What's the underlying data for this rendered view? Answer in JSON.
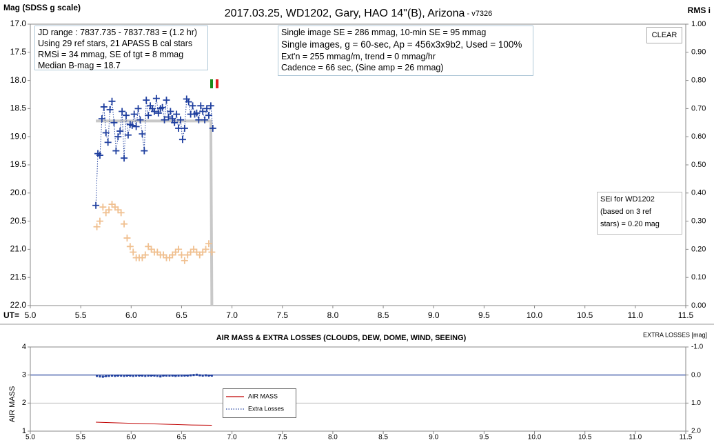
{
  "chart_data": [
    {
      "type": "scatter",
      "title": "2017.03.25, WD1202, Gary, HAO 14\"(B), Arizona",
      "subtitle": " - v7326",
      "y_label": "Mag (SDSS g scale)",
      "y2_label": "RMS i",
      "x_label": "UT=",
      "xlim": [
        5.0,
        11.5
      ],
      "xticks": [
        {
          "value": 5,
          "label": "5.0"
        },
        5.5,
        {
          "value": 6,
          "label": "6.0"
        },
        6.5,
        {
          "value": 7,
          "label": "7.0"
        },
        7.5,
        {
          "value": 8,
          "label": "8.0"
        },
        8.5,
        {
          "value": 9,
          "label": "9.0"
        },
        9.5,
        {
          "value": 10,
          "label": "10.0"
        },
        10.5,
        {
          "value": 11,
          "label": "11.0"
        },
        11.5
      ],
      "ylim": [
        22,
        17
      ],
      "yticks": [
        {
          "value": 17,
          "label": "17.0"
        },
        17.5,
        {
          "value": 18,
          "label": "18.0"
        },
        18.5,
        {
          "value": 19,
          "label": "19.0"
        },
        19.5,
        {
          "value": 20,
          "label": "20.0"
        },
        20.5,
        {
          "value": 21,
          "label": "21.0"
        },
        21.5,
        {
          "value": 22,
          "label": "22.0"
        }
      ],
      "y2lim": [
        0,
        1
      ],
      "y2ticks": [
        {
          "value": 0,
          "label": "0.00"
        },
        {
          "value": 0.1,
          "label": "0.10"
        },
        {
          "value": 0.2,
          "label": "0.20"
        },
        {
          "value": 0.3,
          "label": "0.30"
        },
        {
          "value": 0.4,
          "label": "0.40"
        },
        {
          "value": 0.5,
          "label": "0.50"
        },
        {
          "value": 0.6,
          "label": "0.60"
        },
        {
          "value": 0.7,
          "label": "0.70"
        },
        {
          "value": 0.8,
          "label": "0.80"
        },
        {
          "value": 0.9,
          "label": "0.90"
        },
        {
          "value": 1,
          "label": "1.00"
        }
      ],
      "series": [
        {
          "color": "#c8c8c8",
          "line": "solid",
          "width": 4,
          "marker": "none",
          "x": [
            5.65,
            6.79,
            6.8
          ],
          "values": [
            18.72,
            18.72,
            22.0
          ]
        },
        {
          "color": "#f0c090",
          "line": "none",
          "marker": "plus",
          "axis": "y2",
          "x": [
            5.66,
            5.69,
            5.72,
            5.75,
            5.78,
            5.81,
            5.84,
            5.87,
            5.9,
            5.93,
            5.96,
            5.99,
            6.02,
            6.05,
            6.08,
            6.11,
            6.14,
            6.17,
            6.2,
            6.23,
            6.26,
            6.29,
            6.32,
            6.35,
            6.38,
            6.41,
            6.44,
            6.47,
            6.5,
            6.53,
            6.56,
            6.59,
            6.62,
            6.65,
            6.68,
            6.71,
            6.74,
            6.77,
            6.8
          ],
          "values": [
            0.28,
            0.3,
            0.35,
            0.33,
            0.34,
            0.36,
            0.35,
            0.34,
            0.33,
            0.29,
            0.24,
            0.21,
            0.19,
            0.17,
            0.17,
            0.17,
            0.18,
            0.21,
            0.2,
            0.19,
            0.19,
            0.18,
            0.18,
            0.17,
            0.17,
            0.18,
            0.19,
            0.2,
            0.18,
            0.16,
            0.18,
            0.19,
            0.2,
            0.19,
            0.18,
            0.19,
            0.2,
            0.22,
            0.19
          ]
        },
        {
          "color": "#1f3f9f",
          "line": "dotted",
          "marker": "plus",
          "x": [
            5.65,
            5.67,
            5.69,
            5.71,
            5.73,
            5.75,
            5.77,
            5.79,
            5.81,
            5.83,
            5.85,
            5.87,
            5.89,
            5.91,
            5.93,
            5.95,
            5.97,
            5.99,
            6.01,
            6.03,
            6.05,
            6.07,
            6.09,
            6.11,
            6.13,
            6.15,
            6.17,
            6.19,
            6.21,
            6.23,
            6.25,
            6.27,
            6.29,
            6.31,
            6.33,
            6.35,
            6.37,
            6.39,
            6.41,
            6.43,
            6.45,
            6.47,
            6.49,
            6.51,
            6.53,
            6.55,
            6.57,
            6.59,
            6.61,
            6.63,
            6.65,
            6.67,
            6.69,
            6.71,
            6.73,
            6.75,
            6.77,
            6.79,
            6.81
          ],
          "values": [
            20.22,
            19.3,
            19.33,
            18.68,
            18.47,
            18.93,
            19.1,
            18.52,
            18.37,
            18.75,
            19.25,
            19.0,
            18.9,
            18.55,
            19.38,
            18.62,
            18.97,
            18.78,
            18.8,
            18.6,
            18.82,
            18.5,
            18.7,
            18.95,
            19.25,
            18.35,
            18.62,
            18.45,
            18.5,
            18.55,
            18.32,
            18.58,
            18.5,
            18.48,
            18.7,
            18.35,
            18.65,
            18.55,
            18.68,
            18.75,
            18.6,
            18.85,
            18.7,
            19.05,
            18.85,
            18.33,
            18.38,
            18.6,
            18.45,
            18.6,
            18.58,
            18.7,
            18.45,
            18.55,
            18.7,
            18.5,
            18.62,
            18.45,
            18.85
          ]
        }
      ],
      "annotations": [
        {
          "lines": [
            "JD range : 7837.735 - 7837.783 = (1.2 hr)",
            "Using 29 ref stars, 21 APASS B cal stars",
            "RMSi = 34 mmag, SE of tgt = 8 mmag",
            "Median B-mag = 18.7"
          ]
        },
        {
          "lines": [
            "Single image SE = 286 mmag, 10-min SE = 95 mmag",
            "Single images, g = 60-sec, Ap = 456x3x9b2, Used = 100%",
            "Ext'n = 255 mmag/m, trend = 0 mmag/hr",
            "Cadence = 66 sec, (Sine amp = 26 mmag)"
          ]
        },
        {
          "lines": [
            "SEi for WD1202",
            "(based on 3 ref",
            "stars) = 0.20 mag"
          ]
        }
      ],
      "button": "CLEAR"
    },
    {
      "type": "line",
      "title": "AIR MASS & EXTRA LOSSES (CLOUDS, DEW, DOME, WIND, SEEING)",
      "y_label": "AIR MASS",
      "y2_label": "EXTRA LOSSES [mag]",
      "xlim": [
        5.0,
        11.5
      ],
      "xticks": [
        {
          "value": 5,
          "label": "5.0"
        },
        5.5,
        {
          "value": 6,
          "label": "6.0"
        },
        6.5,
        {
          "value": 7,
          "label": "7.0"
        },
        7.5,
        {
          "value": 8,
          "label": "8.0"
        },
        8.5,
        {
          "value": 9,
          "label": "9.0"
        },
        9.5,
        {
          "value": 10,
          "label": "10.0"
        },
        10.5,
        {
          "value": 11,
          "label": "11.0"
        },
        11.5
      ],
      "ylim": [
        1,
        4
      ],
      "yticks": [
        1,
        2,
        3,
        4
      ],
      "grid": true,
      "y2lim": [
        2,
        -1
      ],
      "y2ticks": [
        {
          "value": -1,
          "label": "-1.0"
        },
        {
          "value": 0,
          "label": "0.0"
        },
        {
          "value": 1,
          "label": "1.0"
        },
        {
          "value": 2,
          "label": "2.0"
        }
      ],
      "y2_reference": 0,
      "series": [
        {
          "name": "AIR MASS",
          "color": "#c00000",
          "line": "solid",
          "marker": "none",
          "x": [
            5.65,
            5.8,
            6.0,
            6.2,
            6.4,
            6.6,
            6.8
          ],
          "values": [
            1.32,
            1.3,
            1.28,
            1.26,
            1.24,
            1.22,
            1.21
          ]
        },
        {
          "name": "Extra Losses",
          "color": "#1f3f9f",
          "line": "dotted",
          "marker": "square",
          "axis": "y2",
          "x": [
            5.66,
            5.69,
            5.72,
            5.75,
            5.78,
            5.81,
            5.84,
            5.87,
            5.9,
            5.93,
            5.96,
            5.99,
            6.02,
            6.05,
            6.08,
            6.11,
            6.14,
            6.17,
            6.2,
            6.23,
            6.26,
            6.29,
            6.32,
            6.35,
            6.38,
            6.41,
            6.44,
            6.47,
            6.5,
            6.53,
            6.56,
            6.59,
            6.62,
            6.65,
            6.68,
            6.71,
            6.74,
            6.77,
            6.8
          ],
          "values": [
            0.03,
            0.05,
            0.06,
            0.04,
            0.03,
            0.02,
            0.03,
            0.02,
            0.02,
            0.03,
            0.02,
            0.02,
            0.03,
            0.02,
            0.02,
            0.02,
            0.03,
            0.02,
            0.02,
            0.02,
            0.03,
            0.05,
            0.02,
            0.02,
            0.02,
            0.02,
            0.03,
            0.02,
            0.02,
            0.02,
            0.02,
            0.01,
            0.0,
            -0.01,
            0.01,
            0.02,
            0.01,
            0.02,
            0.02
          ]
        }
      ]
    }
  ]
}
